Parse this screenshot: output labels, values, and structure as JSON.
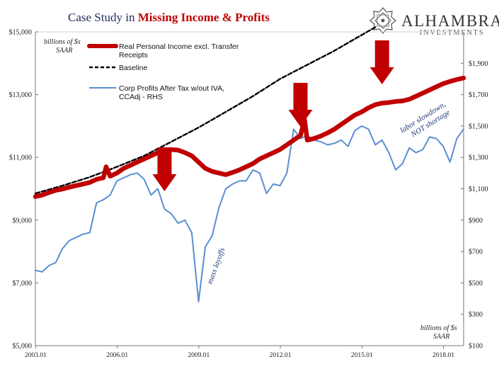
{
  "header": {
    "title_part1": "Case Study in ",
    "title_part2": "Missing Income & Profits"
  },
  "logo": {
    "name": "ALHAMBRA",
    "sub": "INVESTMENTS"
  },
  "units": {
    "left_line1": "billions of $s",
    "left_line2": "SAAR",
    "right_line1": "billions of $s",
    "right_line2": "SAAR"
  },
  "legend": {
    "income": [
      "Real Personal Income excl. Transfer",
      "Receipts"
    ],
    "baseline": [
      "Baseline"
    ],
    "profits": [
      "Corp Profits After Tax w/out IVA,",
      "CCAdj - RHS"
    ]
  },
  "annotations": {
    "mass_layoffs": "mass layoffs",
    "labor_line1": "labor slowdown,",
    "labor_line2": "NOT shortage"
  },
  "colors": {
    "income": "#c00000",
    "baseline": "#000000",
    "profits": "#5b8fd0",
    "arrow": "#c00000"
  },
  "chart_data": {
    "type": "line",
    "x_ticks": [
      "2003.01",
      "2006.01",
      "2009.01",
      "2012.01",
      "2015.01",
      "2018.01"
    ],
    "x_range": [
      2003.0,
      2018.75
    ],
    "y_left": {
      "range": [
        5000,
        15000
      ],
      "ticks": [
        5000,
        7000,
        9000,
        11000,
        13000,
        15000
      ],
      "tick_labels": [
        "$5,000",
        "$7,000",
        "$9,000",
        "$11,000",
        "$13,000",
        "$15,000"
      ]
    },
    "y_right": {
      "range": [
        100,
        2100
      ],
      "ticks": [
        100,
        300,
        500,
        700,
        900,
        1100,
        1300,
        1500,
        1700,
        1900
      ],
      "tick_labels": [
        "$100",
        "$300",
        "$500",
        "$700",
        "$900",
        "$1,100",
        "$1,300",
        "$1,500",
        "$1,700",
        "$1,900"
      ]
    },
    "series": [
      {
        "name": "Real Personal Income excl. Transfer Receipts",
        "axis": "left",
        "points": [
          [
            2003.0,
            9750
          ],
          [
            2003.25,
            9800
          ],
          [
            2003.5,
            9880
          ],
          [
            2003.75,
            9950
          ],
          [
            2004.0,
            9990
          ],
          [
            2004.25,
            10050
          ],
          [
            2004.5,
            10100
          ],
          [
            2004.75,
            10150
          ],
          [
            2005.0,
            10200
          ],
          [
            2005.25,
            10300
          ],
          [
            2005.5,
            10350
          ],
          [
            2005.6,
            10700
          ],
          [
            2005.75,
            10400
          ],
          [
            2006.0,
            10500
          ],
          [
            2006.25,
            10650
          ],
          [
            2006.5,
            10750
          ],
          [
            2006.75,
            10850
          ],
          [
            2007.0,
            10950
          ],
          [
            2007.25,
            11050
          ],
          [
            2007.5,
            11150
          ],
          [
            2007.75,
            11220
          ],
          [
            2008.0,
            11250
          ],
          [
            2008.25,
            11230
          ],
          [
            2008.5,
            11150
          ],
          [
            2008.75,
            11050
          ],
          [
            2009.0,
            10850
          ],
          [
            2009.25,
            10650
          ],
          [
            2009.5,
            10550
          ],
          [
            2009.75,
            10500
          ],
          [
            2010.0,
            10450
          ],
          [
            2010.25,
            10520
          ],
          [
            2010.5,
            10600
          ],
          [
            2010.75,
            10700
          ],
          [
            2011.0,
            10800
          ],
          [
            2011.25,
            10950
          ],
          [
            2011.5,
            11050
          ],
          [
            2011.75,
            11150
          ],
          [
            2012.0,
            11250
          ],
          [
            2012.25,
            11400
          ],
          [
            2012.5,
            11550
          ],
          [
            2012.75,
            11700
          ],
          [
            2012.9,
            12200
          ],
          [
            2013.0,
            11550
          ],
          [
            2013.25,
            11600
          ],
          [
            2013.5,
            11680
          ],
          [
            2013.75,
            11780
          ],
          [
            2014.0,
            11900
          ],
          [
            2014.25,
            12050
          ],
          [
            2014.5,
            12200
          ],
          [
            2014.75,
            12350
          ],
          [
            2015.0,
            12450
          ],
          [
            2015.25,
            12580
          ],
          [
            2015.5,
            12680
          ],
          [
            2015.75,
            12730
          ],
          [
            2016.0,
            12750
          ],
          [
            2016.25,
            12780
          ],
          [
            2016.5,
            12800
          ],
          [
            2016.75,
            12850
          ],
          [
            2017.0,
            12950
          ],
          [
            2017.25,
            13050
          ],
          [
            2017.5,
            13150
          ],
          [
            2017.75,
            13250
          ],
          [
            2018.0,
            13350
          ],
          [
            2018.25,
            13420
          ],
          [
            2018.5,
            13480
          ],
          [
            2018.75,
            13530
          ]
        ]
      },
      {
        "name": "Baseline",
        "axis": "left",
        "points": [
          [
            2003.0,
            9850
          ],
          [
            2004.0,
            10100
          ],
          [
            2005.0,
            10370
          ],
          [
            2006.0,
            10700
          ],
          [
            2007.0,
            11050
          ],
          [
            2008.0,
            11500
          ],
          [
            2009.0,
            11950
          ],
          [
            2010.0,
            12450
          ],
          [
            2011.0,
            12950
          ],
          [
            2012.0,
            13500
          ],
          [
            2013.0,
            13950
          ],
          [
            2014.0,
            14400
          ],
          [
            2015.0,
            14900
          ],
          [
            2015.5,
            15150
          ]
        ]
      },
      {
        "name": "Corp Profits After Tax w/out IVA, CCAdj - RHS",
        "axis": "right",
        "points": [
          [
            2003.0,
            580
          ],
          [
            2003.25,
            570
          ],
          [
            2003.5,
            610
          ],
          [
            2003.75,
            630
          ],
          [
            2004.0,
            720
          ],
          [
            2004.25,
            770
          ],
          [
            2004.5,
            790
          ],
          [
            2004.75,
            810
          ],
          [
            2005.0,
            820
          ],
          [
            2005.25,
            1010
          ],
          [
            2005.5,
            1030
          ],
          [
            2005.75,
            1060
          ],
          [
            2006.0,
            1150
          ],
          [
            2006.25,
            1170
          ],
          [
            2006.5,
            1190
          ],
          [
            2006.75,
            1200
          ],
          [
            2007.0,
            1160
          ],
          [
            2007.25,
            1060
          ],
          [
            2007.5,
            1100
          ],
          [
            2007.75,
            970
          ],
          [
            2008.0,
            940
          ],
          [
            2008.25,
            880
          ],
          [
            2008.5,
            900
          ],
          [
            2008.75,
            820
          ],
          [
            2009.0,
            380
          ],
          [
            2009.25,
            730
          ],
          [
            2009.5,
            800
          ],
          [
            2009.75,
            980
          ],
          [
            2010.0,
            1100
          ],
          [
            2010.25,
            1130
          ],
          [
            2010.5,
            1150
          ],
          [
            2010.75,
            1150
          ],
          [
            2011.0,
            1220
          ],
          [
            2011.25,
            1200
          ],
          [
            2011.5,
            1070
          ],
          [
            2011.75,
            1130
          ],
          [
            2012.0,
            1120
          ],
          [
            2012.25,
            1200
          ],
          [
            2012.5,
            1480
          ],
          [
            2012.75,
            1420
          ],
          [
            2013.0,
            1440
          ],
          [
            2013.25,
            1410
          ],
          [
            2013.5,
            1400
          ],
          [
            2013.75,
            1380
          ],
          [
            2014.0,
            1390
          ],
          [
            2014.25,
            1410
          ],
          [
            2014.5,
            1370
          ],
          [
            2014.75,
            1470
          ],
          [
            2015.0,
            1500
          ],
          [
            2015.25,
            1480
          ],
          [
            2015.5,
            1380
          ],
          [
            2015.75,
            1410
          ],
          [
            2016.0,
            1330
          ],
          [
            2016.25,
            1220
          ],
          [
            2016.5,
            1260
          ],
          [
            2016.75,
            1360
          ],
          [
            2017.0,
            1330
          ],
          [
            2017.25,
            1350
          ],
          [
            2017.5,
            1430
          ],
          [
            2017.75,
            1420
          ],
          [
            2018.0,
            1370
          ],
          [
            2018.25,
            1270
          ],
          [
            2018.5,
            1420
          ],
          [
            2018.75,
            1480
          ]
        ]
      }
    ],
    "arrows": [
      2007.75,
      2012.75,
      2015.75
    ]
  }
}
